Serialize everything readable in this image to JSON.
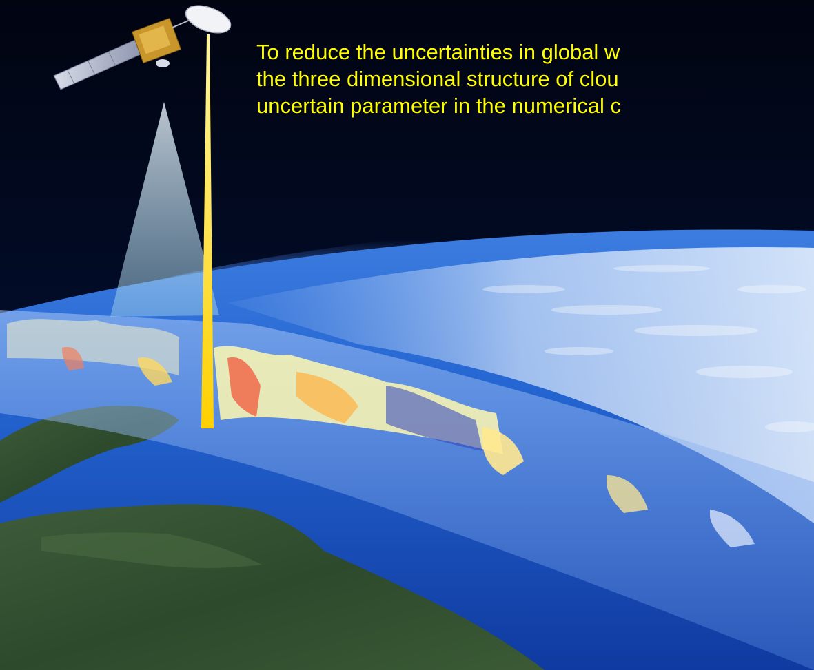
{
  "caption": {
    "lines": [
      "To reduce the uncertainties in global w",
      "the three dimensional structure of clou",
      "uncertain parameter in the numerical c"
    ]
  },
  "colors": {
    "space": "#02061a",
    "caption_text": "#ffff00",
    "ocean": "#1f5fd0",
    "land": "#2c4a2a",
    "radar_beam": "#ffd400",
    "lidar_cone": "#cfe6f5"
  },
  "icons": {
    "satellite": "satellite-icon"
  }
}
